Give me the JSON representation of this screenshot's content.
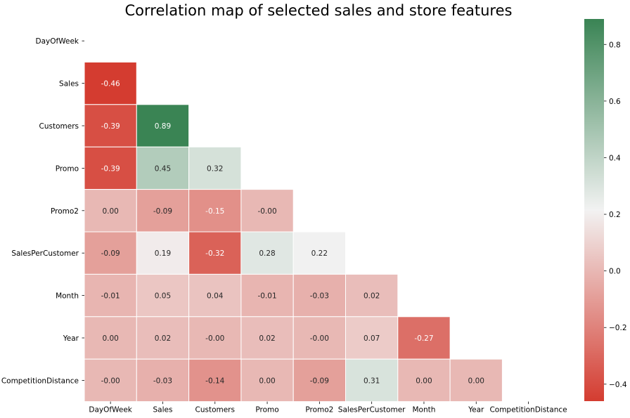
{
  "chart_data": {
    "type": "heatmap",
    "title": "Correlation map of selected sales and store features",
    "xlabel": "",
    "ylabel": "",
    "mask": "upper-triangle-including-diagonal",
    "variables": [
      "DayOfWeek",
      "Sales",
      "Customers",
      "Promo",
      "Promo2",
      "SalesPerCustomer",
      "Month",
      "Year",
      "CompetitionDistance"
    ],
    "cells": [
      {
        "row": 1,
        "col": 0,
        "value": -0.46,
        "label": "-0.46"
      },
      {
        "row": 2,
        "col": 0,
        "value": -0.39,
        "label": "-0.39"
      },
      {
        "row": 2,
        "col": 1,
        "value": 0.89,
        "label": "0.89"
      },
      {
        "row": 3,
        "col": 0,
        "value": -0.39,
        "label": "-0.39"
      },
      {
        "row": 3,
        "col": 1,
        "value": 0.45,
        "label": "0.45"
      },
      {
        "row": 3,
        "col": 2,
        "value": 0.32,
        "label": "0.32"
      },
      {
        "row": 4,
        "col": 0,
        "value": 0.0,
        "label": "0.00"
      },
      {
        "row": 4,
        "col": 1,
        "value": -0.09,
        "label": "-0.09"
      },
      {
        "row": 4,
        "col": 2,
        "value": -0.15,
        "label": "-0.15"
      },
      {
        "row": 4,
        "col": 3,
        "value": -0.0,
        "label": "-0.00"
      },
      {
        "row": 5,
        "col": 0,
        "value": -0.09,
        "label": "-0.09"
      },
      {
        "row": 5,
        "col": 1,
        "value": 0.19,
        "label": "0.19"
      },
      {
        "row": 5,
        "col": 2,
        "value": -0.32,
        "label": "-0.32"
      },
      {
        "row": 5,
        "col": 3,
        "value": 0.28,
        "label": "0.28"
      },
      {
        "row": 5,
        "col": 4,
        "value": 0.22,
        "label": "0.22"
      },
      {
        "row": 6,
        "col": 0,
        "value": -0.01,
        "label": "-0.01"
      },
      {
        "row": 6,
        "col": 1,
        "value": 0.05,
        "label": "0.05"
      },
      {
        "row": 6,
        "col": 2,
        "value": 0.04,
        "label": "0.04"
      },
      {
        "row": 6,
        "col": 3,
        "value": -0.01,
        "label": "-0.01"
      },
      {
        "row": 6,
        "col": 4,
        "value": -0.03,
        "label": "-0.03"
      },
      {
        "row": 6,
        "col": 5,
        "value": 0.02,
        "label": "0.02"
      },
      {
        "row": 7,
        "col": 0,
        "value": 0.0,
        "label": "0.00"
      },
      {
        "row": 7,
        "col": 1,
        "value": 0.02,
        "label": "0.02"
      },
      {
        "row": 7,
        "col": 2,
        "value": -0.0,
        "label": "-0.00"
      },
      {
        "row": 7,
        "col": 3,
        "value": 0.02,
        "label": "0.02"
      },
      {
        "row": 7,
        "col": 4,
        "value": -0.0,
        "label": "-0.00"
      },
      {
        "row": 7,
        "col": 5,
        "value": 0.07,
        "label": "0.07"
      },
      {
        "row": 7,
        "col": 6,
        "value": -0.27,
        "label": "-0.27"
      },
      {
        "row": 8,
        "col": 0,
        "value": -0.0,
        "label": "-0.00"
      },
      {
        "row": 8,
        "col": 1,
        "value": -0.03,
        "label": "-0.03"
      },
      {
        "row": 8,
        "col": 2,
        "value": -0.14,
        "label": "-0.14"
      },
      {
        "row": 8,
        "col": 3,
        "value": 0.0,
        "label": "0.00"
      },
      {
        "row": 8,
        "col": 4,
        "value": -0.09,
        "label": "-0.09"
      },
      {
        "row": 8,
        "col": 5,
        "value": 0.31,
        "label": "0.31"
      },
      {
        "row": 8,
        "col": 6,
        "value": 0.0,
        "label": "0.00"
      },
      {
        "row": 8,
        "col": 7,
        "value": 0.0,
        "label": "0.00"
      }
    ],
    "colorbar": {
      "range": [
        -0.46,
        0.89
      ],
      "ticks": [
        -0.4,
        -0.2,
        0.0,
        0.2,
        0.4,
        0.6,
        0.8
      ],
      "tick_labels": [
        "−0.4",
        "−0.2",
        "0.0",
        "0.2",
        "0.4",
        "0.6",
        "0.8"
      ],
      "placement": "right"
    },
    "colors": {
      "negative": "#d43c30",
      "center": "#f2f2f2",
      "positive": "#3a8454",
      "cell_border": "#ffffff",
      "text_dark": "#262626",
      "text_light": "#ffffff"
    }
  }
}
